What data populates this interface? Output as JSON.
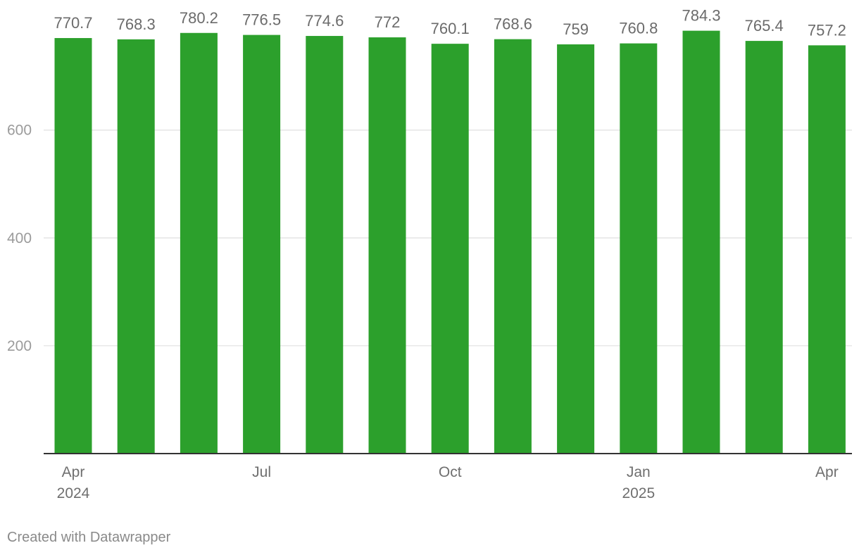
{
  "chart_data": {
    "type": "bar",
    "categories": [
      "2024-04",
      "2024-05",
      "2024-06",
      "2024-07",
      "2024-08",
      "2024-09",
      "2024-10",
      "2024-11",
      "2024-12",
      "2025-01",
      "2025-02",
      "2025-03",
      "2025-04"
    ],
    "values": [
      770.7,
      768.3,
      780.2,
      776.5,
      774.6,
      772,
      760.1,
      768.6,
      759,
      760.8,
      784.3,
      765.4,
      757.2
    ],
    "value_labels": [
      "770.7",
      "768.3",
      "780.2",
      "776.5",
      "774.6",
      "772",
      "760.1",
      "768.6",
      "759",
      "760.8",
      "784.3",
      "765.4",
      "757.2"
    ],
    "x_tick_labels": [
      {
        "category": "2024-04",
        "lines": [
          "Apr",
          "2024"
        ]
      },
      {
        "category": "2024-07",
        "lines": [
          "Jul"
        ]
      },
      {
        "category": "2024-10",
        "lines": [
          "Oct"
        ]
      },
      {
        "category": "2025-01",
        "lines": [
          "Jan",
          "2025"
        ]
      },
      {
        "category": "2025-04",
        "lines": [
          "Apr"
        ]
      }
    ],
    "y_ticks": [
      200,
      400,
      600
    ],
    "ylim": [
      0,
      800
    ],
    "grid": true,
    "bar_color": "#2ca02c",
    "title": "",
    "xlabel": "",
    "ylabel": ""
  },
  "footer": {
    "credit": "Created with Datawrapper"
  }
}
